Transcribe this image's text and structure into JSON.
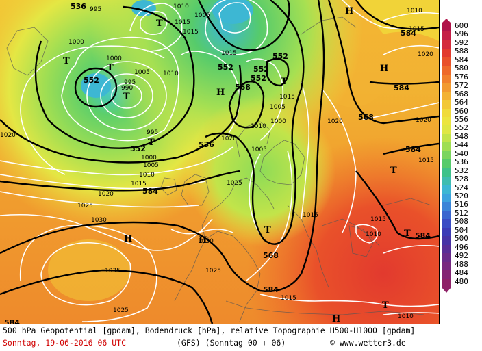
{
  "map": {
    "geopotential_labels": [
      "536",
      "552",
      "552",
      "552",
      "552",
      "552",
      "568",
      "552",
      "536",
      "584",
      "584",
      "568",
      "584",
      "584",
      "584",
      "584",
      "568",
      "584"
    ],
    "pressure_labels": [
      "995",
      "1010",
      "1005",
      "1015",
      "1000",
      "1015",
      "1015",
      "1010",
      "1005",
      "1000",
      "995",
      "990",
      "1005",
      "1010",
      "1015",
      "1000",
      "1005",
      "1020",
      "1020",
      "1010",
      "1015",
      "1020",
      "995",
      "1000",
      "1005",
      "1010",
      "1015",
      "1020",
      "1025",
      "1030",
      "1035",
      "1030",
      "1025",
      "1015",
      "1025",
      "1015",
      "1010",
      "1015",
      "1020",
      "1010",
      "1015",
      "1025",
      "1020"
    ],
    "hl_labels": [
      "T",
      "T",
      "T",
      "H",
      "T",
      "T",
      "T",
      "H",
      "H",
      "H",
      "T",
      "T",
      "T",
      "T",
      "H",
      "H"
    ]
  },
  "legend": {
    "levels": [
      "600",
      "596",
      "592",
      "588",
      "584",
      "580",
      "576",
      "572",
      "568",
      "564",
      "560",
      "556",
      "552",
      "548",
      "544",
      "540",
      "536",
      "532",
      "528",
      "524",
      "520",
      "516",
      "512",
      "508",
      "504",
      "500",
      "496",
      "492",
      "488",
      "484",
      "480"
    ],
    "colors": [
      "#b0134a",
      "#c41e47",
      "#d42c3c",
      "#e23a2e",
      "#e9512a",
      "#ee6a2a",
      "#f1812d",
      "#f29a30",
      "#f3b233",
      "#f2c836",
      "#f0db3a",
      "#ece53f",
      "#dfe744",
      "#c2e44a",
      "#9fde53",
      "#7ad55e",
      "#56cb6b",
      "#3ec28a",
      "#3fbdb0",
      "#3db7d3",
      "#3ca3de",
      "#3b85d8",
      "#3a66cf",
      "#3a4cc4",
      "#3c3bb6",
      "#4733a6",
      "#582e98",
      "#692b8b",
      "#782880",
      "#842574",
      "#8f2268"
    ]
  },
  "footer": {
    "line1": "500 hPa Geopotential [gpdam], Bodendruck [hPa], relative Topographie H500-H1000 [gpdam]",
    "date": "Sonntag, 19-06-2016  06 UTC",
    "model": "(GFS)  (Sonntag 00 + 06)",
    "credit": "© www.wetter3.de"
  }
}
